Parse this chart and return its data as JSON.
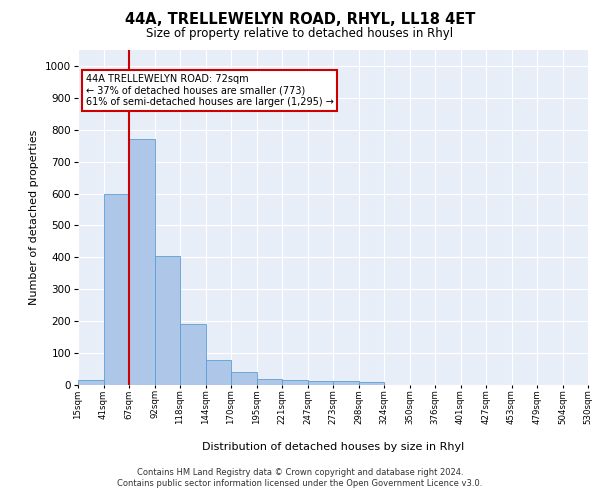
{
  "title": "44A, TRELLEWELYN ROAD, RHYL, LL18 4ET",
  "subtitle": "Size of property relative to detached houses in Rhyl",
  "xlabel": "Distribution of detached houses by size in Rhyl",
  "ylabel": "Number of detached properties",
  "bar_values": [
    15,
    600,
    770,
    405,
    190,
    78,
    40,
    18,
    15,
    12,
    13,
    8,
    0,
    0,
    0,
    0,
    0,
    0,
    0,
    0
  ],
  "bin_labels": [
    "15sqm",
    "41sqm",
    "67sqm",
    "92sqm",
    "118sqm",
    "144sqm",
    "170sqm",
    "195sqm",
    "221sqm",
    "247sqm",
    "273sqm",
    "298sqm",
    "324sqm",
    "350sqm",
    "376sqm",
    "401sqm",
    "427sqm",
    "453sqm",
    "479sqm",
    "504sqm",
    "530sqm"
  ],
  "bar_color": "#aec6e8",
  "bar_edge_color": "#5a9fd4",
  "red_line_bin": 2,
  "ylim": [
    0,
    1050
  ],
  "yticks": [
    0,
    100,
    200,
    300,
    400,
    500,
    600,
    700,
    800,
    900,
    1000
  ],
  "annotation_line1": "44A TRELLEWELYN ROAD: 72sqm",
  "annotation_line2": "← 37% of detached houses are smaller (773)",
  "annotation_line3": "61% of semi-detached houses are larger (1,295) →",
  "annotation_box_color": "#ffffff",
  "annotation_box_edgecolor": "#cc0000",
  "footer": "Contains HM Land Registry data © Crown copyright and database right 2024.\nContains public sector information licensed under the Open Government Licence v3.0.",
  "plot_bg_color": "#e8eef8",
  "fig_bg_color": "#ffffff",
  "grid_color": "#ffffff"
}
